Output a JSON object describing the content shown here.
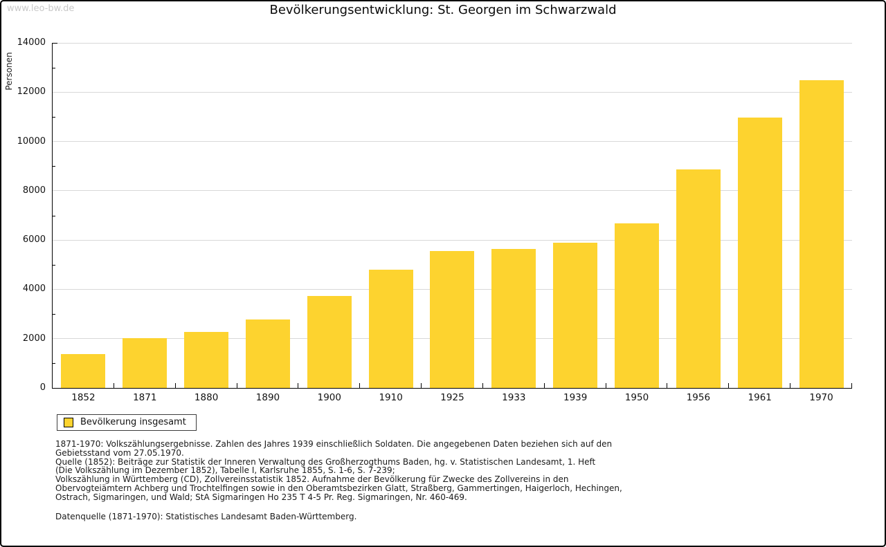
{
  "watermark": "www.leo-bw.de",
  "title": "Bevölkerungsentwicklung: St. Georgen im Schwarzwald",
  "chart_data": {
    "type": "bar",
    "title": "Bevölkerungsentwicklung: St. Georgen im Schwarzwald",
    "xlabel": "",
    "ylabel": "Personen",
    "categories": [
      "1852",
      "1871",
      "1880",
      "1890",
      "1900",
      "1910",
      "1925",
      "1933",
      "1939",
      "1950",
      "1956",
      "1961",
      "1970"
    ],
    "values": [
      1386,
      2030,
      2286,
      2779,
      3740,
      4812,
      5545,
      5633,
      5886,
      6689,
      8866,
      10976,
      12485
    ],
    "ylim": [
      0,
      14000
    ],
    "ytick_step": 2000,
    "y_minor_step": 1000,
    "grid": true,
    "bar_color": "#fdd32f",
    "legend_position": "bottom-left",
    "legend": {
      "label": "Bevölkerung insgesamt"
    }
  },
  "footer": {
    "block1": [
      "1871-1970: Volkszählungsergebnisse. Zahlen des Jahres 1939 einschließlich Soldaten. Die angegebenen Daten beziehen sich auf den",
      "Gebietsstand vom 27.05.1970.",
      "Quelle (1852): Beiträge zur Statistik der Inneren Verwaltung des Großherzogthums Baden, hg. v. Statistischen Landesamt, 1. Heft",
      "(Die Volkszählung im Dezember 1852), Tabelle I, Karlsruhe 1855, S. 1-6, S. 7-239;",
      "Volkszählung in Württemberg (CD), Zollvereinsstatistik 1852. Aufnahme der Bevölkerung für Zwecke des Zollvereins in den",
      "Obervogteiämtern Achberg und Trochtelfingen sowie in den Oberamtsbezirken Glatt, Straßberg, Gammertingen, Haigerloch, Hechingen,",
      "Ostrach, Sigmaringen, und Wald; StA Sigmaringen Ho 235 T 4-5 Pr. Reg. Sigmaringen, Nr. 460-469."
    ],
    "datenquelle": "Datenquelle (1871-1970): Statistisches Landesamt Baden-Württemberg."
  }
}
